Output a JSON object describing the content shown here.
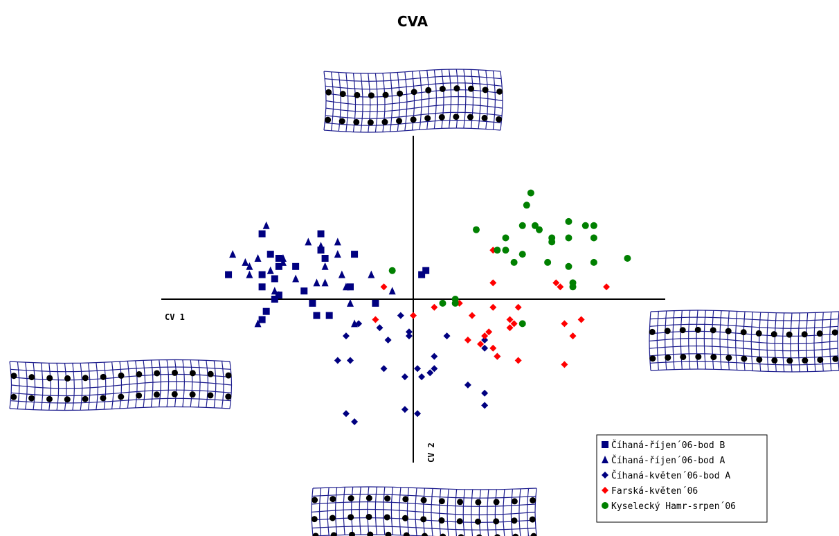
{
  "chart_data": {
    "type": "scatter",
    "title": "CVA",
    "x_label": "CV 1",
    "y_label": "CV 2",
    "xlim": [
      -6,
      6
    ],
    "ylim": [
      -4,
      4
    ],
    "legend": "bottom-right",
    "series": [
      {
        "name": "Číhaná-říjen´06-bod B",
        "color": "#000080",
        "marker": "square",
        "x": [
          -3.6,
          -2.2,
          -3.4,
          -3.2,
          -3.2,
          -4.4,
          -3.6,
          -3.3,
          -2.8,
          -2.1,
          -2.2,
          -1.4,
          -2.6,
          -3.6,
          -3.2,
          -2.4,
          -2.3,
          -2.0,
          -3.5,
          -3.6,
          -1.5,
          -0.9,
          0.2,
          0.3,
          -3.3
        ],
        "values": [
          1.6,
          1.6,
          1.1,
          1.0,
          0.8,
          0.6,
          0.6,
          0.5,
          0.8,
          1.0,
          1.2,
          1.1,
          0.2,
          0.3,
          0.1,
          -0.1,
          -0.4,
          -0.4,
          -0.3,
          -0.5,
          0.3,
          -0.1,
          0.6,
          0.7,
          0.0
        ]
      },
      {
        "name": "Číhaná-říjen´06-bod A",
        "color": "#000080",
        "marker": "triangle",
        "x": [
          -3.5,
          -4.3,
          -4.0,
          -3.9,
          -3.9,
          -3.7,
          -3.4,
          -3.1,
          -3.1,
          -2.5,
          -2.2,
          -2.1,
          -1.8,
          -1.8,
          -1.7,
          -2.8,
          -2.3,
          -2.1,
          -1.6,
          -1.5,
          -1.4,
          -1.0,
          -0.5,
          -3.7,
          -3.3,
          -3.2
        ],
        "values": [
          1.8,
          1.1,
          0.9,
          0.8,
          0.6,
          1.0,
          0.7,
          1.0,
          0.9,
          1.4,
          1.3,
          0.8,
          1.1,
          1.4,
          0.6,
          0.5,
          0.4,
          0.4,
          0.3,
          -0.1,
          -0.6,
          0.6,
          0.2,
          -0.6,
          0.2,
          0.1
        ]
      },
      {
        "name": "Číhaná-květen´06-bod A",
        "color": "#000080",
        "marker": "diamond",
        "x": [
          -0.3,
          -0.8,
          -0.6,
          -0.1,
          -0.1,
          -1.6,
          -1.3,
          -1.8,
          -1.5,
          -0.7,
          -0.2,
          0.1,
          0.2,
          0.4,
          0.5,
          0.5,
          0.8,
          1.7,
          1.7,
          2.0,
          1.3,
          1.7,
          1.7,
          -0.2,
          0.1,
          -1.6,
          -1.4
        ],
        "values": [
          -0.4,
          -0.7,
          -1.0,
          -0.8,
          -0.9,
          -0.9,
          -0.6,
          -1.5,
          -1.5,
          -1.7,
          -1.9,
          -1.7,
          -1.9,
          -1.8,
          -1.4,
          -1.7,
          -0.9,
          -1.0,
          -1.2,
          -1.4,
          -2.1,
          -2.3,
          -2.6,
          -2.7,
          -2.8,
          -2.8,
          -3.0
        ]
      },
      {
        "name": "Farská-květen´06",
        "color": "#ff0000",
        "marker": "diamond",
        "x": [
          1.9,
          -0.7,
          1.9,
          0.5,
          1.1,
          0.0,
          -0.9,
          1.4,
          1.9,
          2.5,
          2.4,
          2.3,
          2.3,
          1.8,
          1.7,
          1.3,
          1.9,
          2.0,
          2.5,
          3.4,
          3.5,
          4.6,
          3.6,
          4.0,
          3.8,
          3.6,
          1.6
        ],
        "values": [
          1.2,
          0.3,
          0.4,
          -0.2,
          -0.1,
          -0.4,
          -0.5,
          -0.4,
          -0.2,
          -0.2,
          -0.6,
          -0.5,
          -0.7,
          -0.8,
          -0.9,
          -1.0,
          -1.2,
          -1.4,
          -1.5,
          0.4,
          0.3,
          0.3,
          -0.6,
          -0.5,
          -0.9,
          -1.6,
          -1.1
        ]
      },
      {
        "name": "Kyselecký Hamr-srpen´06",
        "color": "#008000",
        "marker": "circle",
        "x": [
          2.8,
          2.7,
          1.5,
          2.2,
          2.6,
          2.9,
          3.0,
          3.7,
          4.1,
          4.3,
          3.3,
          3.3,
          3.7,
          4.3,
          2.0,
          2.2,
          2.4,
          2.6,
          3.2,
          3.7,
          4.3,
          5.1,
          3.8,
          3.8,
          -0.5,
          0.7,
          1.0,
          1.0,
          2.6
        ],
        "values": [
          2.6,
          2.3,
          1.7,
          1.5,
          1.8,
          1.8,
          1.7,
          1.9,
          1.8,
          1.8,
          1.5,
          1.4,
          1.5,
          1.5,
          1.2,
          1.2,
          0.9,
          1.1,
          0.9,
          0.8,
          0.9,
          1.0,
          0.4,
          0.3,
          0.7,
          -0.1,
          -0.1,
          0.0,
          -0.6
        ]
      }
    ]
  }
}
